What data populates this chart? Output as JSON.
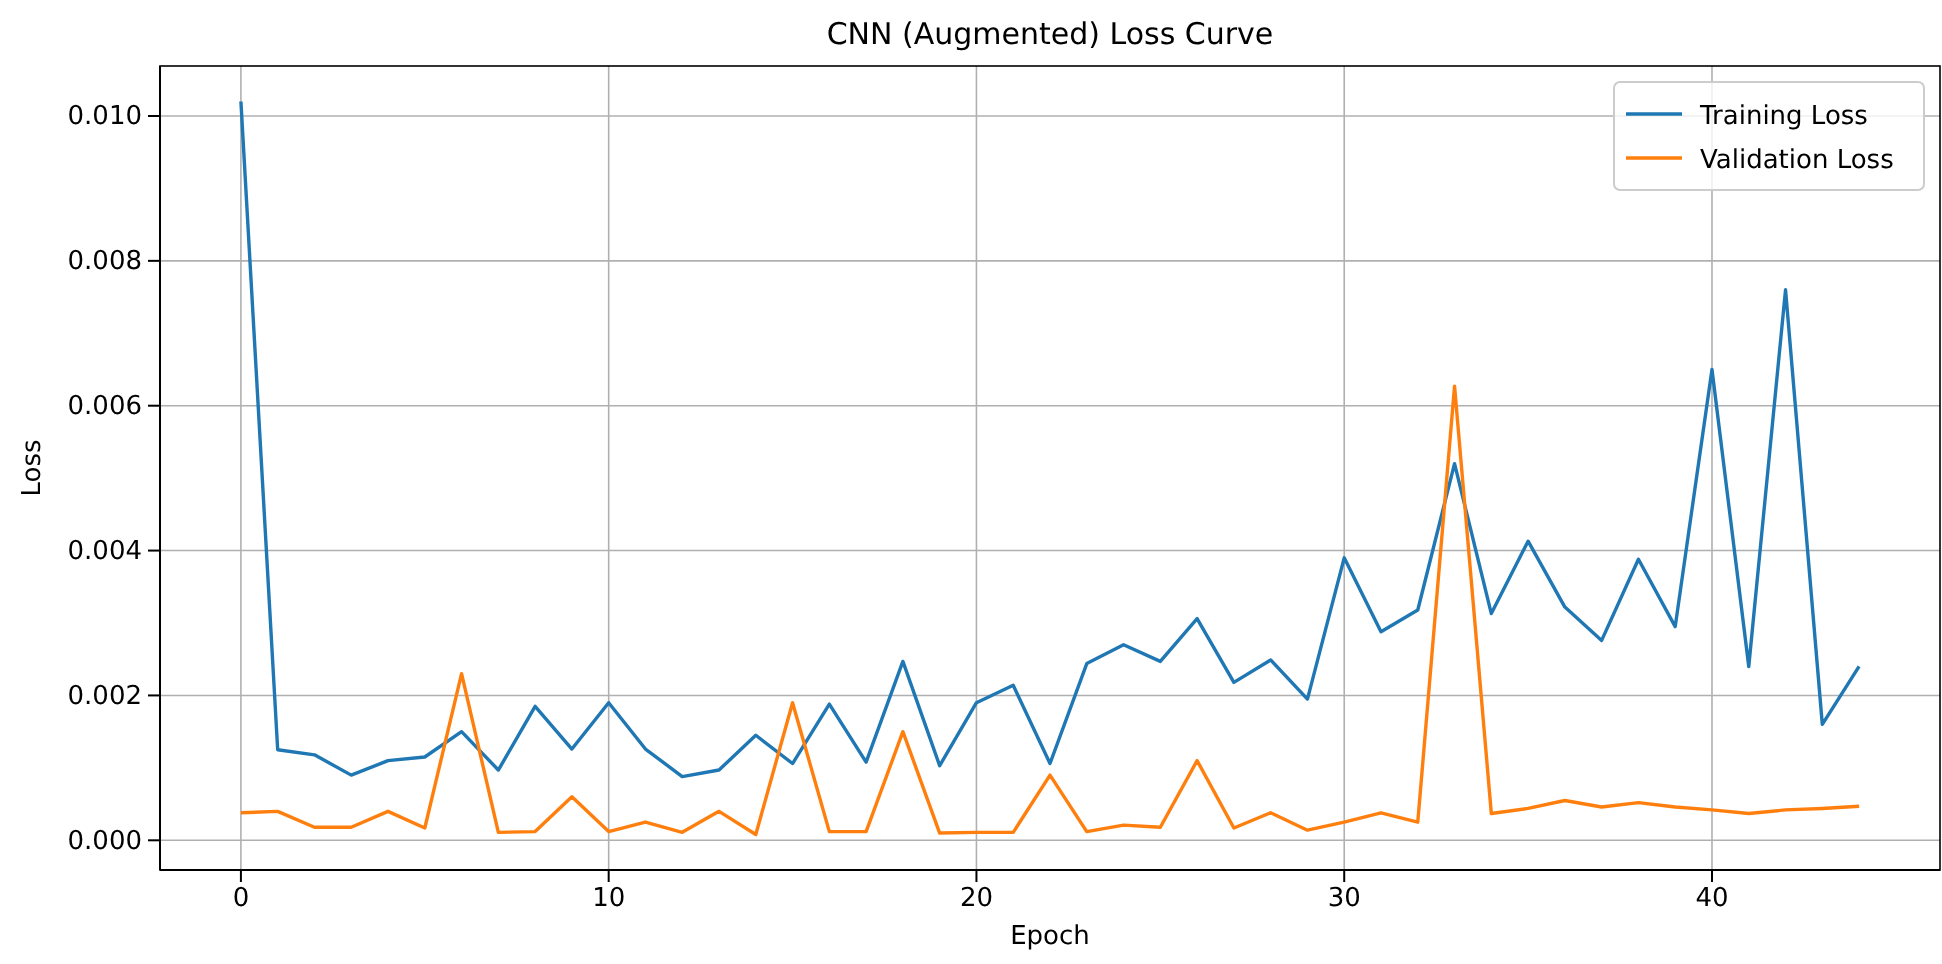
{
  "chart_data": {
    "type": "line",
    "title": "CNN (Augmented) Loss Curve",
    "xlabel": "Epoch",
    "ylabel": "Loss",
    "x": [
      0,
      1,
      2,
      3,
      4,
      5,
      6,
      7,
      8,
      9,
      10,
      11,
      12,
      13,
      14,
      15,
      16,
      17,
      18,
      19,
      20,
      21,
      22,
      23,
      24,
      25,
      26,
      27,
      28,
      29,
      30,
      31,
      32,
      33,
      34,
      35,
      36,
      37,
      38,
      39,
      40,
      41,
      42,
      43,
      44
    ],
    "series": [
      {
        "name": "Training Loss",
        "color": "#1f77b4",
        "values": [
          0.0102,
          0.00125,
          0.00118,
          0.0009,
          0.0011,
          0.00115,
          0.0015,
          0.00097,
          0.00185,
          0.00126,
          0.0019,
          0.00126,
          0.00088,
          0.00097,
          0.00145,
          0.00106,
          0.00188,
          0.00108,
          0.00247,
          0.00103,
          0.0019,
          0.00214,
          0.00106,
          0.00244,
          0.0027,
          0.00247,
          0.00306,
          0.00218,
          0.00249,
          0.00195,
          0.0039,
          0.00288,
          0.00318,
          0.0052,
          0.00313,
          0.00413,
          0.00322,
          0.00276,
          0.00388,
          0.00295,
          0.0065,
          0.0024,
          0.0076,
          0.0016,
          0.0024
        ]
      },
      {
        "name": "Validation Loss",
        "color": "#ff7f0e",
        "values": [
          0.00038,
          0.0004,
          0.00018,
          0.00018,
          0.0004,
          0.00017,
          0.0023,
          0.00011,
          0.00012,
          0.0006,
          0.00012,
          0.00025,
          0.00011,
          0.0004,
          8e-05,
          0.0019,
          0.00012,
          0.00012,
          0.0015,
          0.0001,
          0.00011,
          0.00011,
          0.0009,
          0.00012,
          0.00021,
          0.00018,
          0.0011,
          0.00017,
          0.00038,
          0.00014,
          0.00025,
          0.00038,
          0.00025,
          0.00627,
          0.00037,
          0.00044,
          0.00055,
          0.00046,
          0.00052,
          0.00046,
          0.00042,
          0.00037,
          0.00042,
          0.00044,
          0.00047
        ]
      }
    ],
    "xlim": [
      -2.2,
      46.2
    ],
    "xticks": [
      0,
      10,
      20,
      30,
      40
    ],
    "ylim": [
      -0.00041,
      0.01069
    ],
    "yticks": [
      {
        "value": 0,
        "label": "0.000"
      },
      {
        "value": 0.002,
        "label": "0.002"
      },
      {
        "value": 0.004,
        "label": "0.004"
      },
      {
        "value": 0.006,
        "label": "0.006"
      },
      {
        "value": 0.008,
        "label": "0.008"
      },
      {
        "value": 0.01,
        "label": "0.010"
      }
    ],
    "grid": true,
    "legend": "top right",
    "line_style": "solid",
    "marker": "none"
  }
}
